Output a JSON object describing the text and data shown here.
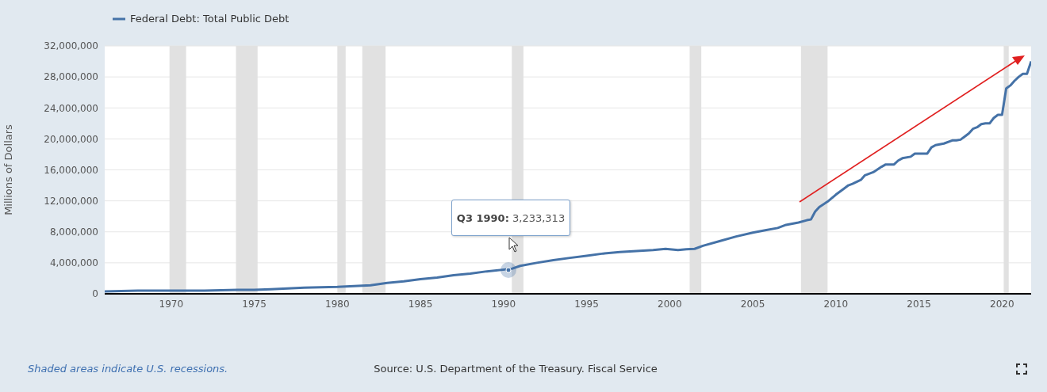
{
  "chart_data": {
    "type": "line",
    "ylabel": "Millions of Dollars",
    "legend": "top left",
    "grid": "y",
    "marker": "none",
    "line_style": "solid",
    "xlim": [
      1966,
      2021.75
    ],
    "xticks": [
      1970,
      1975,
      1980,
      1985,
      1990,
      1995,
      2000,
      2005,
      2010,
      2015,
      2020
    ],
    "ylim": [
      0,
      32000000
    ],
    "yticks": [
      0,
      {
        "value": 4000000,
        "label": "4,000,000"
      },
      {
        "value": 8000000,
        "label": "8,000,000"
      },
      {
        "value": 12000000,
        "label": "12,000,000"
      },
      {
        "value": 16000000,
        "label": "16,000,000"
      },
      {
        "value": 20000000,
        "label": "20,000,000"
      },
      {
        "value": 24000000,
        "label": "24,000,000"
      },
      {
        "value": 28000000,
        "label": "28,000,000"
      },
      {
        "value": 32000000,
        "label": "32,000,000"
      }
    ],
    "series": [
      {
        "name": "Federal Debt: Total Public Debt",
        "color": "#4572a7",
        "x": [
          1966,
          1968,
          1970,
          1972,
          1974,
          1975,
          1976,
          1978,
          1980,
          1981,
          1982,
          1983,
          1984,
          1985,
          1986,
          1987,
          1988,
          1989,
          1990.5,
          1991,
          1992,
          1993,
          1994,
          1995,
          1996,
          1997,
          1998,
          1999,
          1999.75,
          2000.5,
          2001,
          2001.5,
          2002,
          2003,
          2004,
          2005,
          2005.75,
          2006.5,
          2007,
          2007.75,
          2008.25,
          2008.5,
          2008.75,
          2009,
          2009.5,
          2010,
          2010.5,
          2010.75,
          2011,
          2011.5,
          2011.75,
          2012.25,
          2012.75,
          2013,
          2013.5,
          2013.75,
          2014,
          2014.5,
          2014.75,
          2015.25,
          2015.5,
          2015.75,
          2016,
          2016.5,
          2017,
          2017.25,
          2017.5,
          2017.75,
          2018,
          2018.25,
          2018.5,
          2018.75,
          2019,
          2019.25,
          2019.5,
          2019.75,
          2020,
          2020.25,
          2020.5,
          2020.75,
          2021,
          2021.25,
          2021.5,
          2021.75
        ],
        "values": [
          300000,
          400000,
          400000,
          400000,
          500000,
          500000,
          600000,
          800000,
          900000,
          1000000,
          1100000,
          1400000,
          1600000,
          1900000,
          2100000,
          2400000,
          2600000,
          2900000,
          3233313,
          3600000,
          4000000,
          4350000,
          4640000,
          4900000,
          5200000,
          5400000,
          5530000,
          5650000,
          5800000,
          5650000,
          5750000,
          5800000,
          6200000,
          6800000,
          7400000,
          7900000,
          8200000,
          8500000,
          8900000,
          9200000,
          9500000,
          9600000,
          10600000,
          11200000,
          11900000,
          12800000,
          13600000,
          14000000,
          14200000,
          14700000,
          15300000,
          15700000,
          16400000,
          16700000,
          16700000,
          17200000,
          17500000,
          17700000,
          18100000,
          18100000,
          18100000,
          18900000,
          19200000,
          19400000,
          19800000,
          19800000,
          19900000,
          20300000,
          20700000,
          21300000,
          21500000,
          21900000,
          22000000,
          22000000,
          22700000,
          23100000,
          23100000,
          26500000,
          26900000,
          27500000,
          28000000,
          28400000,
          28400000,
          30000000
        ]
      }
    ],
    "bands": [
      {
        "axis": "x",
        "from": 1969.9,
        "to": 1970.9,
        "color": "#e1e1e1"
      },
      {
        "axis": "x",
        "from": 1973.9,
        "to": 1975.2,
        "color": "#e1e1e1"
      },
      {
        "axis": "x",
        "from": 1980,
        "to": 1980.5,
        "color": "#e1e1e1"
      },
      {
        "axis": "x",
        "from": 1981.5,
        "to": 1982.9,
        "color": "#e1e1e1"
      },
      {
        "axis": "x",
        "from": 1990.5,
        "to": 1991.2,
        "color": "#e1e1e1"
      },
      {
        "axis": "x",
        "from": 2001.2,
        "to": 2001.9,
        "color": "#e1e1e1"
      },
      {
        "axis": "x",
        "from": 2007.9,
        "to": 2009.5,
        "color": "#e1e1e1"
      },
      {
        "axis": "x",
        "from": 2020.1,
        "to": 2020.4,
        "color": "#e1e1e1"
      }
    ],
    "annotations": [
      "Q3 1990: 3,233,313",
      "Shaded areas indicate U.S. recessions.",
      "Source: U.S. Department of the Treasury. Fiscal Service"
    ]
  }
}
